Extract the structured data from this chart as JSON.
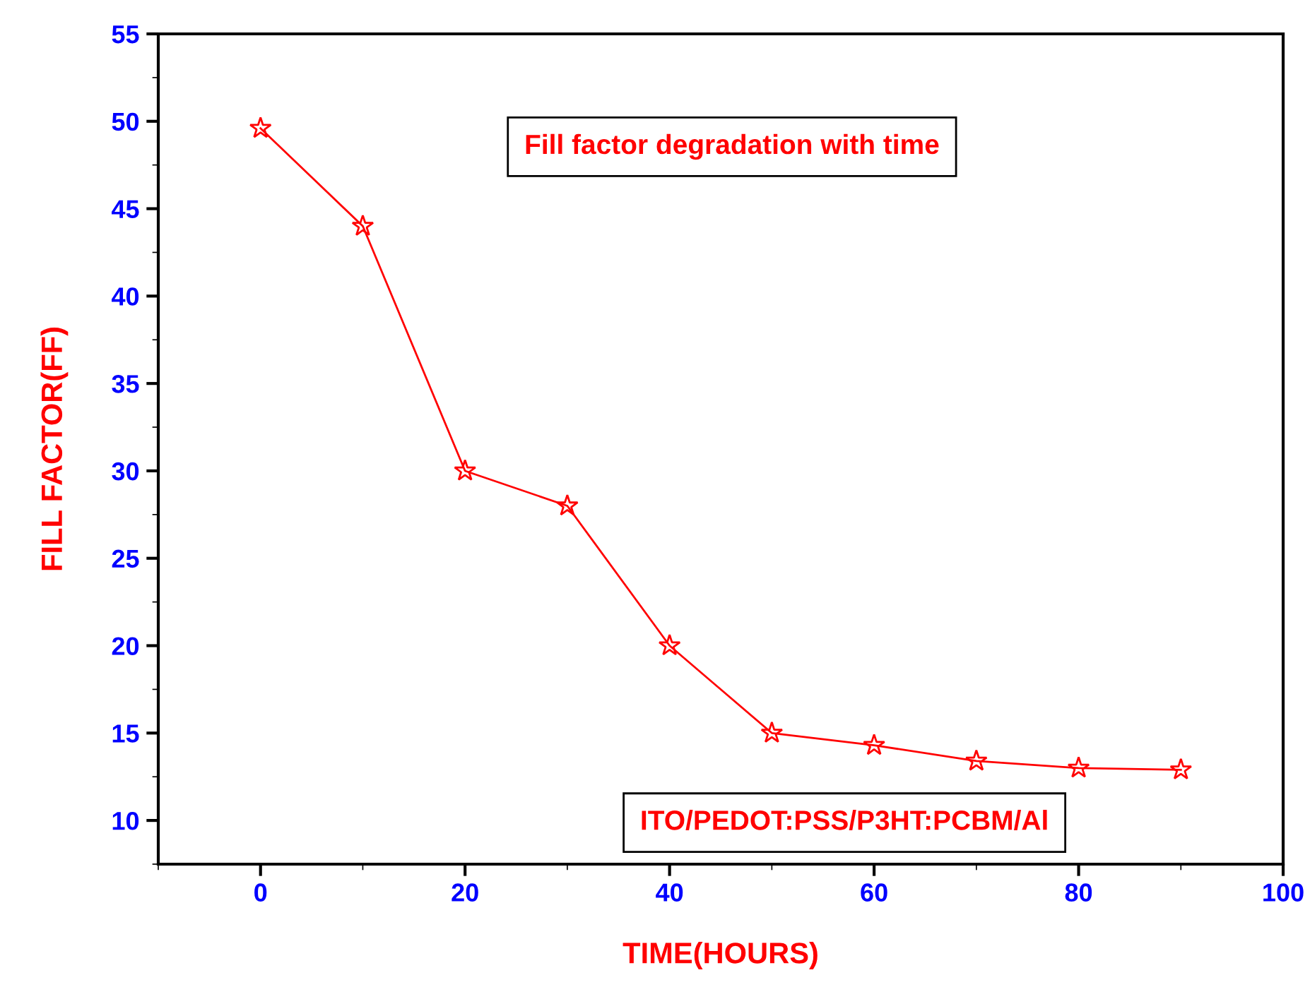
{
  "chart_data": {
    "type": "line",
    "xlabel": "TIME(HOURS)",
    "ylabel": "FILL FACTOR(FF)",
    "annotations": [
      "Fill factor degradation with time",
      "ITO/PEDOT:PSS/P3HT:PCBM/Al"
    ],
    "x": [
      0,
      10,
      20,
      30,
      40,
      50,
      60,
      70,
      80,
      90
    ],
    "series": [
      {
        "color": "#ff0000",
        "values": [
          49.6,
          44,
          30,
          28,
          20,
          15,
          14.3,
          13.4,
          13,
          12.9
        ]
      }
    ],
    "xlim": [
      -10,
      100
    ],
    "ylim": [
      7.5,
      55
    ],
    "xticks": [
      0,
      20,
      40,
      60,
      80,
      100
    ],
    "yticks": [
      10,
      15,
      20,
      25,
      30,
      35,
      40,
      45,
      50,
      55
    ],
    "grid": false,
    "marker": "star",
    "line_style": "solid"
  }
}
